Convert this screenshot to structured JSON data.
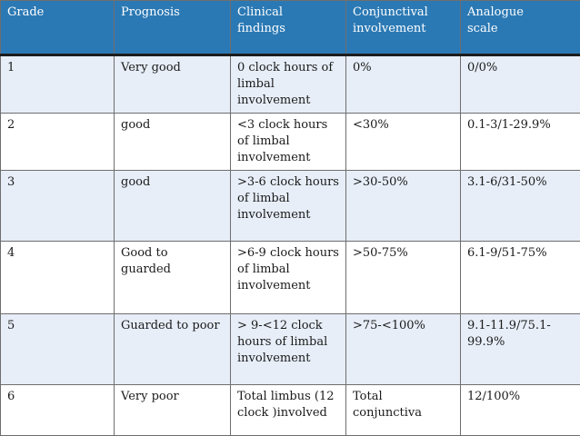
{
  "table": {
    "headers": [
      "Grade",
      "Prognosis",
      "Clinical\nfindings",
      "Conjunctival\ninvolvement",
      " Analogue\nscale"
    ],
    "rows": [
      [
        "1",
        "Very good",
        "0 clock hours of\nlimbal\ninvolvement",
        "0%",
        "0/0%"
      ],
      [
        "2",
        " good",
        "<3 clock hours\nof limbal\ninvolvement",
        "<30%",
        "0.1-3/1-29.9%"
      ],
      [
        "3",
        " good",
        ">3-6 clock hours\nof limbal\ninvolvement",
        ">30-50%",
        "3.1-6/31-50%"
      ],
      [
        "4",
        "Good to\nguarded",
        ">6-9 clock hours\nof limbal\ninvolvement",
        ">50-75%",
        "6.1-9/51-75%"
      ],
      [
        "5",
        "Guarded to poor",
        "> 9-<12 clock\nhours of  limbal\ninvolvement",
        ">75-<100%",
        "9.1-11.9/75.1-\n99.9%"
      ],
      [
        "6",
        "Very poor",
        "Total limbus (12\nclock )involved",
        "Total\nconjunctiva",
        "12/100%"
      ]
    ]
  },
  "colors": {
    "header_bg": "#2b79b4",
    "header_text": "#ffffff",
    "row_band": "#e7eef8",
    "row_plain": "#ffffff",
    "border": "#6e6e6e"
  }
}
